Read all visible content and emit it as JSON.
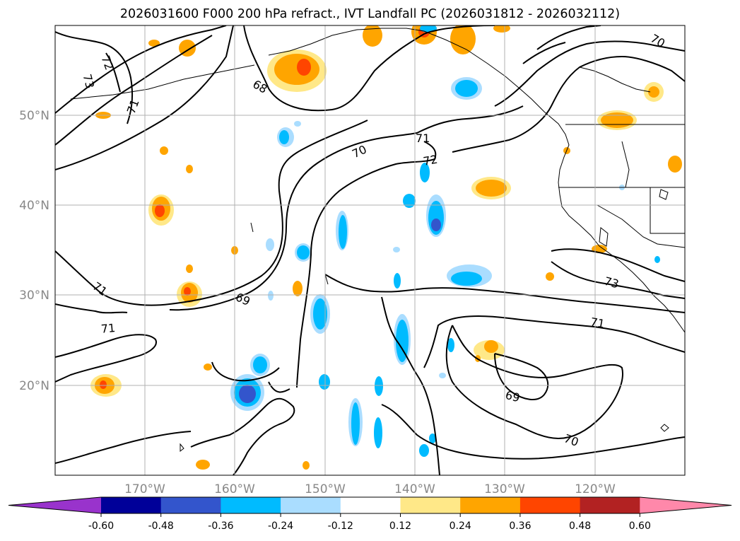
{
  "title": "2026031600 F000 200 hPa refract., IVT Landfall PC (2026031812 - 2026032112)",
  "lat_labels": [
    "50°N",
    "40°N",
    "30°N",
    "20°N"
  ],
  "lon_labels": [
    "170°W",
    "160°W",
    "150°W",
    "140°W",
    "130°W",
    "120°W"
  ],
  "contour_labels": [
    "72",
    "73",
    "71",
    "68",
    "70",
    "71",
    "72",
    "70",
    "71",
    "69",
    "71",
    "73",
    "71",
    "69",
    "70"
  ],
  "colorbar": {
    "colors": [
      "#9933cc",
      "#000099",
      "#3355cc",
      "#00bbff",
      "#aaddff",
      "#ffffff",
      "#ffe888",
      "#ffa500",
      "#ff4500",
      "#b22222",
      "#ff88aa"
    ],
    "ticks": [
      "-0.60",
      "-0.48",
      "-0.36",
      "-0.24",
      "-0.12",
      "0.12",
      "0.24",
      "0.36",
      "0.48",
      "0.60"
    ]
  }
}
